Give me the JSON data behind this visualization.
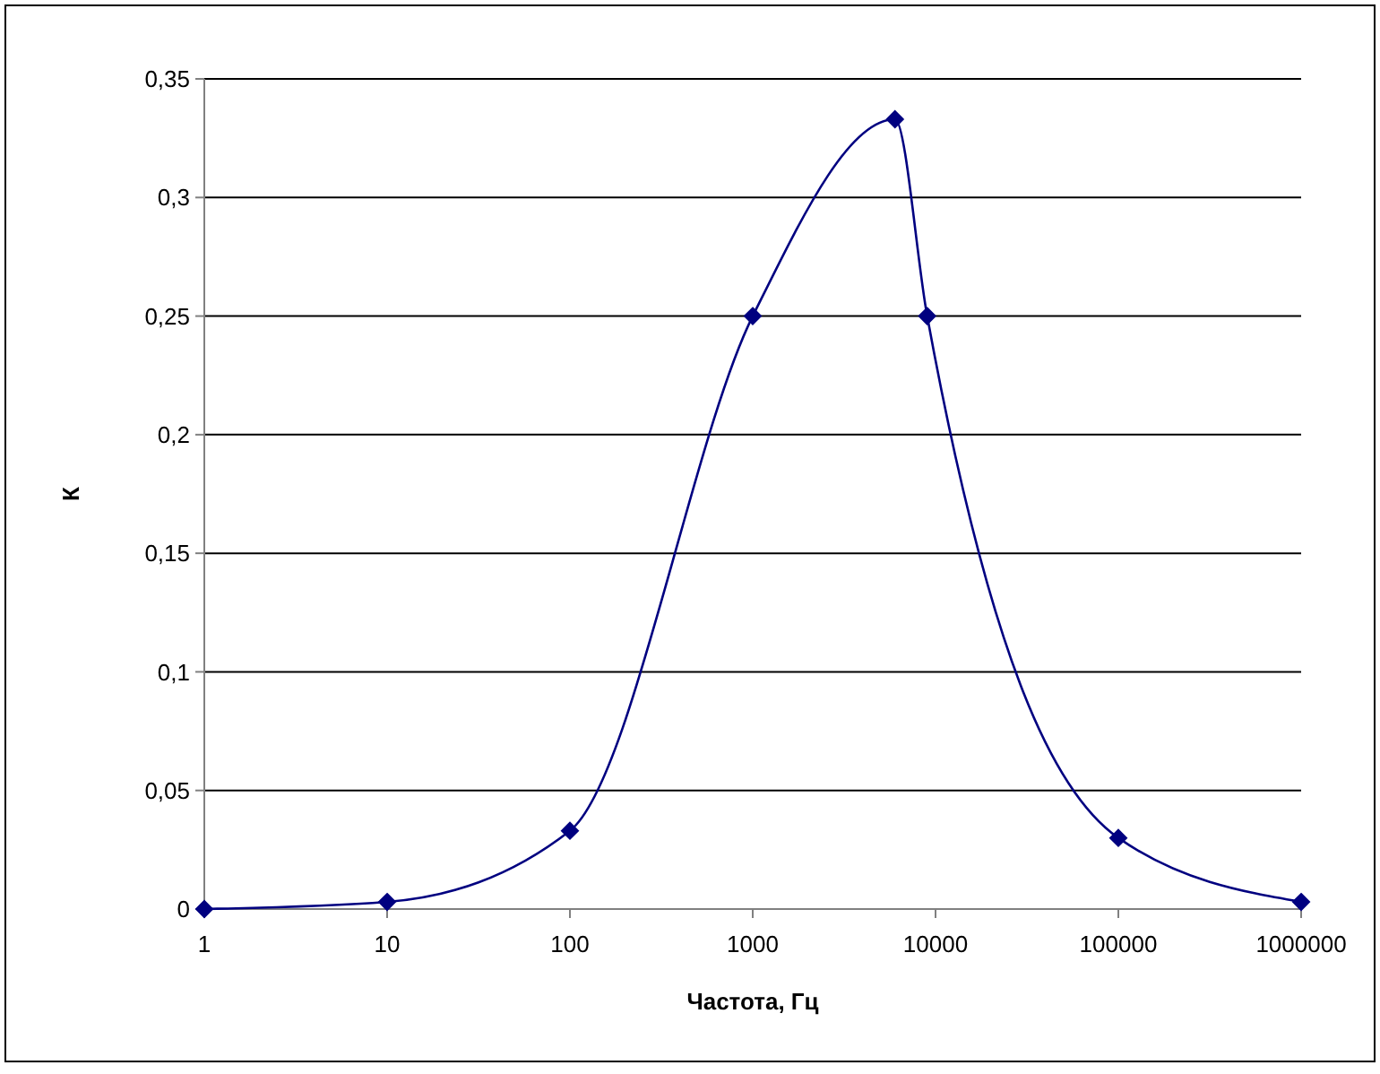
{
  "chart_data": {
    "type": "line",
    "xlabel": "Частота, Гц",
    "ylabel": "К",
    "log": "x",
    "x": [
      1,
      10,
      100,
      1000,
      6000,
      9000,
      100000,
      1000000
    ],
    "series": [
      {
        "color": "#000080",
        "values": [
          0,
          0.003,
          0.033,
          0.25,
          0.333,
          0.25,
          0.03,
          0.003
        ]
      }
    ],
    "xlim": [
      1,
      1000000
    ],
    "xticks": [
      1,
      10,
      100,
      1000,
      10000,
      100000,
      1000000
    ],
    "ylim": [
      0,
      0.35
    ],
    "yticks": [
      0,
      {
        "value": 0.05,
        "label": "0,05"
      },
      {
        "value": 0.1,
        "label": "0,1"
      },
      {
        "value": 0.15,
        "label": "0,15"
      },
      {
        "value": 0.2,
        "label": "0,2"
      },
      {
        "value": 0.25,
        "label": "0,25"
      },
      {
        "value": 0.3,
        "label": "0,3"
      },
      {
        "value": 0.35,
        "label": "0,35"
      }
    ],
    "grid": "y",
    "marker": "diamond",
    "line_style": "solid"
  }
}
